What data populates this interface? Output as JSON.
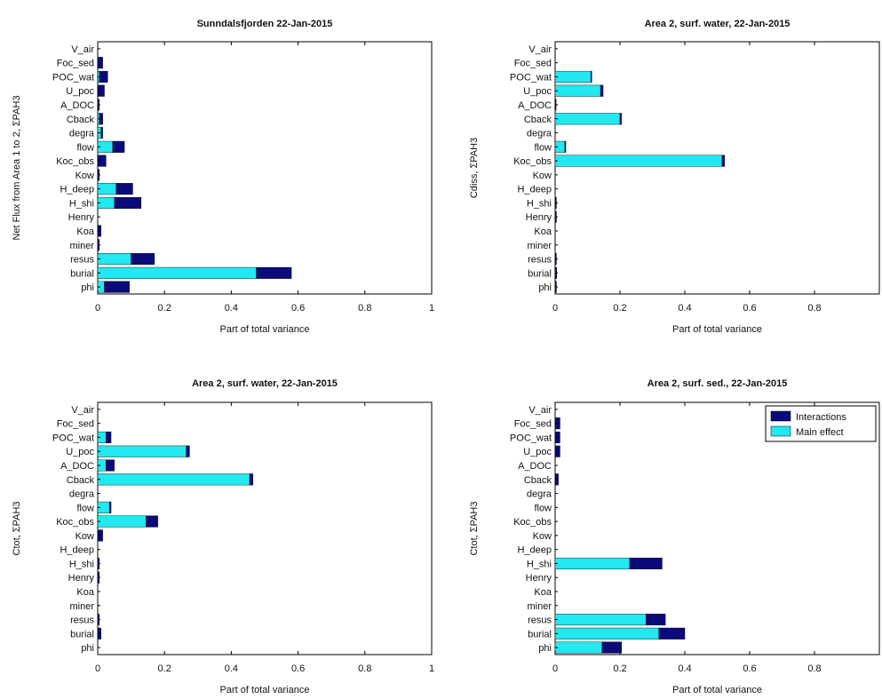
{
  "colors": {
    "interactions": "#0a0a7a",
    "main_effect": "#22e8f0",
    "axes": "#000000",
    "background": "#ffffff"
  },
  "legend": {
    "interactions_label": "Interactions",
    "main_effect_label": "Main effect",
    "placement": "top-right of panel 4"
  },
  "chart_data": [
    {
      "type": "bar",
      "orientation": "horizontal",
      "stacked": true,
      "title": "Sunndalsfjorden 22-Jan-2015",
      "xlabel": "Part of total variance",
      "ylabel": "Net Flux from Area 1 to 2, ΣPAH3",
      "xlim": [
        0,
        1
      ],
      "xticks": [
        "0",
        "0.2",
        "0.4",
        "0.6",
        "0.8",
        "1"
      ],
      "categories": [
        "V_air",
        "Foc_sed",
        "POC_wat",
        "U_poc",
        "A_DOC",
        "Cback",
        "degra",
        "flow",
        "Koc_obs",
        "Kow",
        "H_deep",
        "H_shi",
        "Henry",
        "Koa",
        "miner",
        "resus",
        "burial",
        "phi"
      ],
      "series": [
        {
          "name": "Main effect",
          "values": [
            0,
            0,
            0.005,
            0,
            0,
            0.005,
            0.01,
            0.045,
            0,
            0,
            0.055,
            0.05,
            0,
            0,
            0,
            0.1,
            0.475,
            0.02
          ]
        },
        {
          "name": "Interactions",
          "values": [
            0,
            0.015,
            0.025,
            0.02,
            0.005,
            0.01,
            0.005,
            0.035,
            0.025,
            0.005,
            0.05,
            0.08,
            0,
            0.01,
            0.005,
            0.07,
            0.105,
            0.075
          ]
        }
      ]
    },
    {
      "type": "bar",
      "orientation": "horizontal",
      "stacked": true,
      "title": "Area 2, surf. water, 22-Jan-2015",
      "xlabel": "Part of total variance",
      "ylabel": "Cdiss, ΣPAH3",
      "xlim": [
        0,
        1
      ],
      "xticks": [
        "0",
        "0.2",
        "0.4",
        "0.6",
        "0.8",
        ""
      ],
      "categories": [
        "V_air",
        "Foc_sed",
        "POC_wat",
        "U_poc",
        "A_DOC",
        "Cback",
        "degra",
        "flow",
        "Koc_obs",
        "Kow",
        "H_deep",
        "H_shi",
        "Henry",
        "Koa",
        "miner",
        "resus",
        "burial",
        "phi"
      ],
      "series": [
        {
          "name": "Main effect",
          "values": [
            0,
            0,
            0.11,
            0.14,
            0,
            0.2,
            0,
            0.03,
            0.515,
            0,
            0,
            0,
            0,
            0,
            0,
            0,
            0,
            0
          ]
        },
        {
          "name": "Interactions",
          "values": [
            0,
            0,
            0.003,
            0.008,
            0.003,
            0.005,
            0,
            0.003,
            0.008,
            0,
            0,
            0.004,
            0.004,
            0,
            0,
            0.004,
            0.005,
            0.004
          ]
        }
      ]
    },
    {
      "type": "bar",
      "orientation": "horizontal",
      "stacked": true,
      "title": "Area 2, surf. water, 22-Jan-2015",
      "xlabel": "Part of total variance",
      "ylabel": "Ctot, ΣPAH3",
      "xlim": [
        0,
        1
      ],
      "xticks": [
        "0",
        "0.2",
        "0.4",
        "0.6",
        "0.8",
        "1"
      ],
      "categories": [
        "V_air",
        "Foc_sed",
        "POC_wat",
        "U_poc",
        "A_DOC",
        "Cback",
        "degra",
        "flow",
        "Koc_obs",
        "Kow",
        "H_deep",
        "H_shi",
        "Henry",
        "Koa",
        "miner",
        "resus",
        "burial",
        "phi"
      ],
      "series": [
        {
          "name": "Main effect",
          "values": [
            0,
            0,
            0.025,
            0.265,
            0.025,
            0.455,
            0,
            0.035,
            0.145,
            0,
            0,
            0,
            0,
            0,
            0,
            0,
            0,
            0
          ]
        },
        {
          "name": "Interactions",
          "values": [
            0,
            0,
            0.015,
            0.01,
            0.025,
            0.01,
            0,
            0.005,
            0.035,
            0.015,
            0,
            0.005,
            0.005,
            0,
            0,
            0.005,
            0.01,
            0
          ]
        }
      ]
    },
    {
      "type": "bar",
      "orientation": "horizontal",
      "stacked": true,
      "title": "Area 2, surf. sed., 22-Jan-2015",
      "xlabel": "Part of total variance",
      "ylabel": "Ctot, ΣPAH3",
      "xlim": [
        0,
        1
      ],
      "xticks": [
        "0",
        "0.2",
        "0.4",
        "0.6",
        "0.8",
        ""
      ],
      "categories": [
        "V_air",
        "Foc_sed",
        "POC_wat",
        "U_poc",
        "A_DOC",
        "Cback",
        "degra",
        "flow",
        "Koc_obs",
        "Kow",
        "H_deep",
        "H_shi",
        "Henry",
        "Koa",
        "miner",
        "resus",
        "burial",
        "phi"
      ],
      "series": [
        {
          "name": "Main effect",
          "values": [
            0,
            0,
            0,
            0,
            0,
            0,
            0,
            0,
            0,
            0,
            0,
            0.23,
            0,
            0,
            0,
            0.28,
            0.32,
            0.145
          ]
        },
        {
          "name": "Interactions",
          "values": [
            0,
            0.015,
            0.015,
            0.015,
            0,
            0.01,
            0,
            0,
            0,
            0,
            0,
            0.1,
            0,
            0,
            0,
            0.06,
            0.08,
            0.06
          ]
        }
      ]
    }
  ]
}
